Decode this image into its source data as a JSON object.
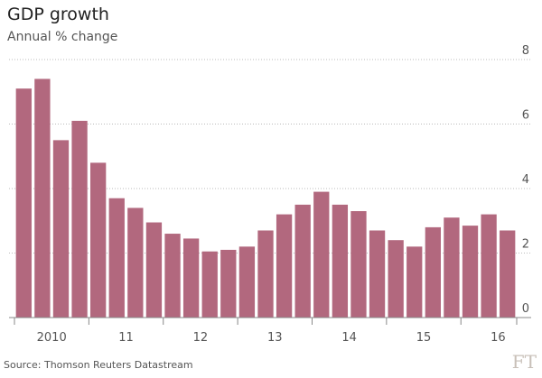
{
  "chart_data": {
    "type": "bar",
    "title": "GDP growth",
    "subtitle": "Annual % change",
    "source": "Source: Thomson Reuters Datastream",
    "logo": "FT",
    "categories": [
      null,
      "2010",
      null,
      null,
      null,
      "11",
      null,
      null,
      null,
      "12",
      null,
      null,
      null,
      "13",
      null,
      null,
      null,
      "14",
      null,
      null,
      null,
      "15",
      null,
      null,
      null,
      "16",
      null
    ],
    "values": [
      7.1,
      7.4,
      5.5,
      6.1,
      4.8,
      3.7,
      3.4,
      2.95,
      2.6,
      2.45,
      2.05,
      2.1,
      2.2,
      2.7,
      3.2,
      3.5,
      3.9,
      3.5,
      3.3,
      2.7,
      2.4,
      2.2,
      2.8,
      3.1,
      2.85,
      3.2,
      2.7
    ],
    "color": "#b2687e",
    "ylim": [
      0,
      8
    ],
    "yticks": [
      0,
      2,
      4,
      6,
      8
    ],
    "grid": true
  }
}
